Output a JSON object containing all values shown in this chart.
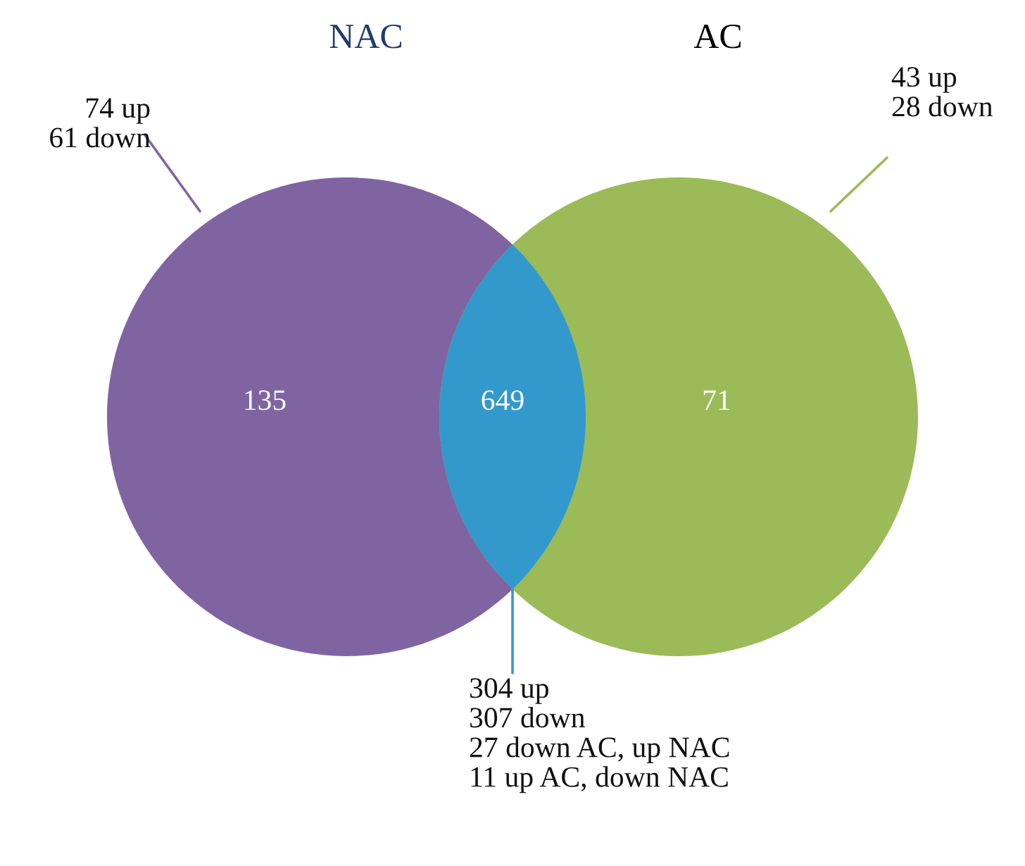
{
  "chart_data": {
    "type": "other",
    "categories": [
      "NAC",
      null,
      "AC"
    ],
    "values": [
      135,
      649,
      71
    ],
    "data_labels": true,
    "colors": [
      "#8064a2",
      "#3399cc",
      "#9bbb59"
    ],
    "annotations": [
      "74 up\n61 down",
      "304 up\n307 down\n27 down AC, up NAC\n11 up AC, down NAC",
      "43 up\n28 down"
    ]
  }
}
